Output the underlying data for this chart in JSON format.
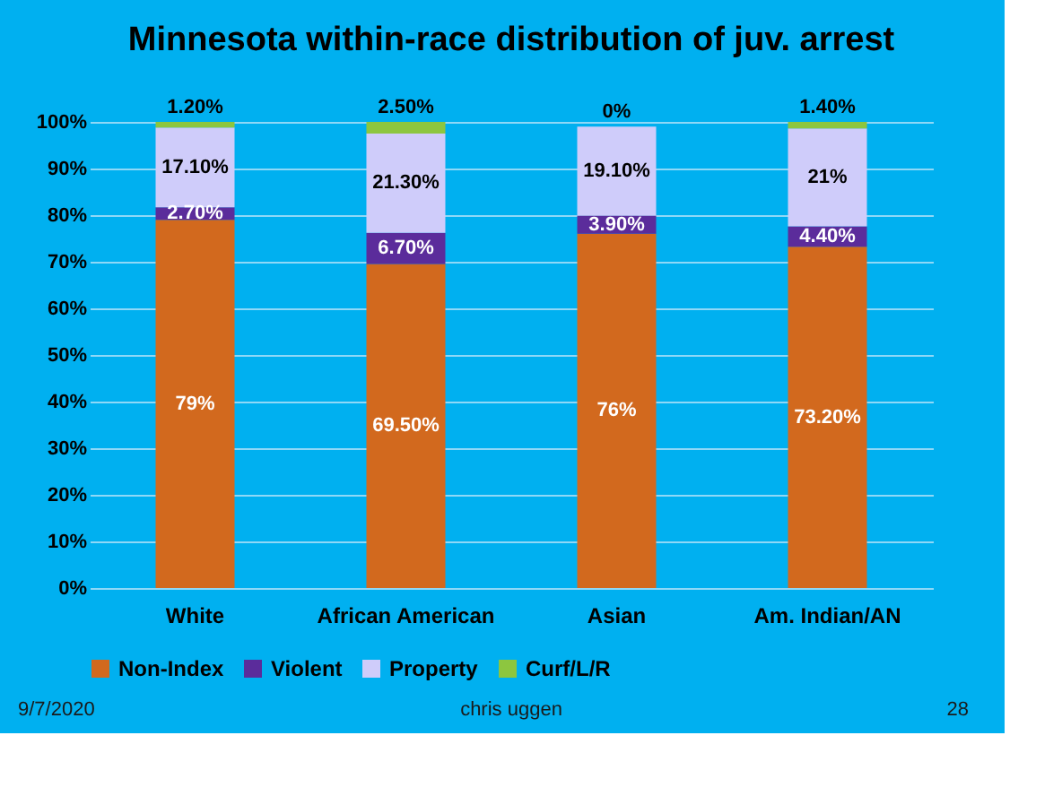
{
  "chart_data": {
    "type": "bar",
    "title": "Minnesota within-race distribution of juv. arrest",
    "categories": [
      "White",
      "African American",
      "Asian",
      "Am. Indian/AN"
    ],
    "stacked": true,
    "series": [
      {
        "name": "Non-Index",
        "color": "#d2691e",
        "values": [
          79,
          69.5,
          76,
          73.2
        ],
        "value_labels": [
          "79%",
          "69.50%",
          "76%",
          "73.20%"
        ]
      },
      {
        "name": "Violent",
        "color": "#5b2c9b",
        "values": [
          2.7,
          6.7,
          3.9,
          4.4
        ],
        "value_labels": [
          "2.70%",
          "6.70%",
          "3.90%",
          "4.40%"
        ]
      },
      {
        "name": "Property",
        "color": "#cfccfa",
        "values": [
          17.1,
          21.3,
          19.1,
          21
        ],
        "value_labels": [
          "17.10%",
          "21.30%",
          "19.10%",
          "21%"
        ]
      },
      {
        "name": "Curf/L/R",
        "color": "#8dc63f",
        "values": [
          1.2,
          2.5,
          0,
          1.4
        ],
        "value_labels": [
          "1.20%",
          "2.50%",
          "0%",
          "1.40%"
        ]
      }
    ],
    "ylim": [
      0,
      100
    ],
    "yticks": [
      {
        "value": 0,
        "label": "0%"
      },
      {
        "value": 10,
        "label": "10%"
      },
      {
        "value": 20,
        "label": "20%"
      },
      {
        "value": 30,
        "label": "30%"
      },
      {
        "value": 40,
        "label": "40%"
      },
      {
        "value": 50,
        "label": "50%"
      },
      {
        "value": 60,
        "label": "60%"
      },
      {
        "value": 70,
        "label": "70%"
      },
      {
        "value": 80,
        "label": "80%"
      },
      {
        "value": 90,
        "label": "90%"
      },
      {
        "value": 100,
        "label": "100%"
      }
    ],
    "grid": "y",
    "legend": "bottom",
    "annotations": [
      "9/7/2020",
      "chris uggen",
      "28"
    ]
  }
}
